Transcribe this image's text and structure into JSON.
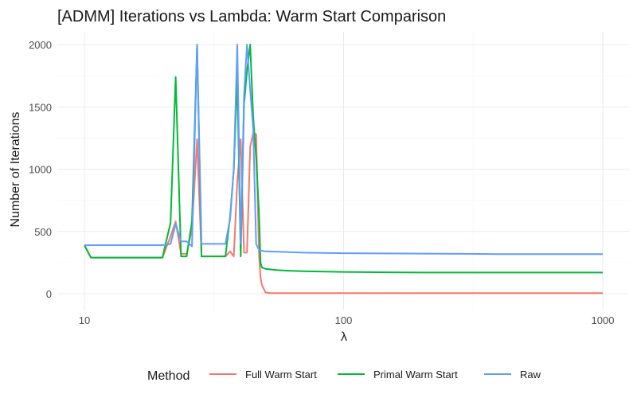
{
  "chart_data": {
    "type": "line",
    "title": "[ADMM] Iterations vs Lambda: Warm Start Comparison",
    "xlabel": "λ",
    "ylabel": "Number of Iterations",
    "x_scale": "log10",
    "xlim": [
      10,
      1000
    ],
    "ylim": [
      0,
      2000
    ],
    "x_ticks": [
      10,
      100,
      1000
    ],
    "x_tick_labels": [
      "10",
      "100",
      "1000"
    ],
    "y_ticks": [
      0,
      500,
      1000,
      1500,
      2000
    ],
    "y_tick_labels": [
      "0",
      "500",
      "1000",
      "1500",
      "2000"
    ],
    "grid": true,
    "legend_position": "bottom",
    "legend_title": "Method",
    "series": [
      {
        "name": "Full Warm Start",
        "color": "#F8766D",
        "x": [
          10,
          10.6,
          12,
          15,
          20,
          21.5,
          22.5,
          23.6,
          24.8,
          26,
          27.2,
          28.3,
          29.5,
          32,
          35,
          36.5,
          37.7,
          38.9,
          40.1,
          41.3,
          42.4,
          43.6,
          44.8,
          46,
          47.2,
          47.8,
          48.4,
          50,
          52,
          55,
          60,
          70,
          100,
          200,
          500,
          1000
        ],
        "y": [
          390,
          290,
          290,
          290,
          290,
          460,
          580,
          320,
          320,
          520,
          1240,
          300,
          300,
          300,
          300,
          340,
          300,
          900,
          1240,
          330,
          330,
          1180,
          1290,
          1280,
          300,
          130,
          70,
          10,
          5,
          5,
          5,
          5,
          5,
          5,
          5,
          5
        ]
      },
      {
        "name": "Primal Warm Start",
        "color": "#00BA38",
        "x": [
          10,
          10.6,
          12,
          15,
          20,
          21.5,
          22.5,
          23.6,
          24.8,
          26,
          27.2,
          28.3,
          29.5,
          32,
          35,
          36.5,
          37.7,
          38.9,
          40.1,
          41.3,
          42.4,
          43.6,
          44.8,
          46,
          47.2,
          47.8,
          48.4,
          50,
          55,
          60,
          70,
          100,
          150,
          200,
          500,
          1000
        ],
        "y": [
          390,
          290,
          290,
          290,
          290,
          570,
          1740,
          300,
          300,
          580,
          2000,
          300,
          300,
          300,
          300,
          620,
          1000,
          1740,
          300,
          1520,
          1790,
          2000,
          1420,
          1090,
          630,
          250,
          210,
          200,
          190,
          185,
          180,
          175,
          172,
          170,
          170,
          170
        ]
      },
      {
        "name": "Raw",
        "color": "#619CFF",
        "x": [
          10,
          12,
          15,
          20,
          21.5,
          22.5,
          23.6,
          24.8,
          26,
          27.2,
          28.3,
          29.5,
          32,
          35,
          36.5,
          37.7,
          38.9,
          40.1,
          41.3,
          42.4,
          43.6,
          44.8,
          46,
          47.2,
          47.8,
          48.4,
          50,
          60,
          70,
          100,
          200,
          300,
          400,
          500,
          700,
          1000
        ],
        "y": [
          390,
          390,
          390,
          390,
          400,
          560,
          420,
          420,
          380,
          2000,
          400,
          400,
          400,
          400,
          600,
          1000,
          2000,
          400,
          1600,
          2000,
          1640,
          1320,
          400,
          350,
          345,
          345,
          340,
          335,
          330,
          325,
          322,
          320,
          318,
          318,
          318,
          318
        ]
      }
    ]
  }
}
